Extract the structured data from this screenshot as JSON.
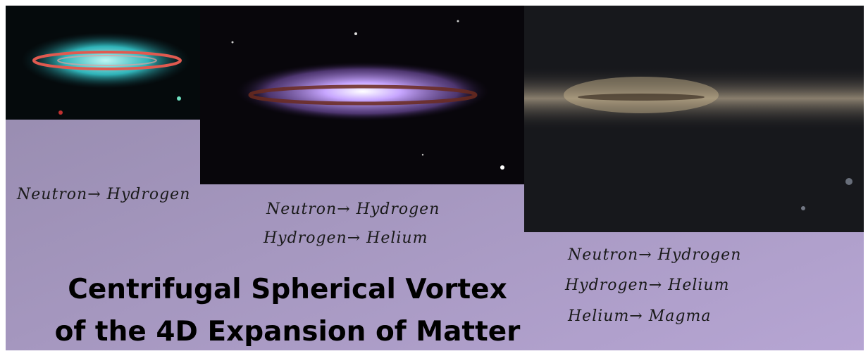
{
  "stages": [
    {
      "lines": [
        "Neutron→ Hydrogen"
      ]
    },
    {
      "lines": [
        "Neutron→ Hydrogen",
        "Hydrogen→ Helium"
      ]
    },
    {
      "lines": [
        "Neutron→ Hydrogen",
        "Hydrogen→ Helium",
        "Helium→ Magma"
      ]
    }
  ],
  "title": {
    "lines": [
      "Centrifugal Spherical Vortex",
      "of the 4D Expansion of Matter"
    ]
  }
}
